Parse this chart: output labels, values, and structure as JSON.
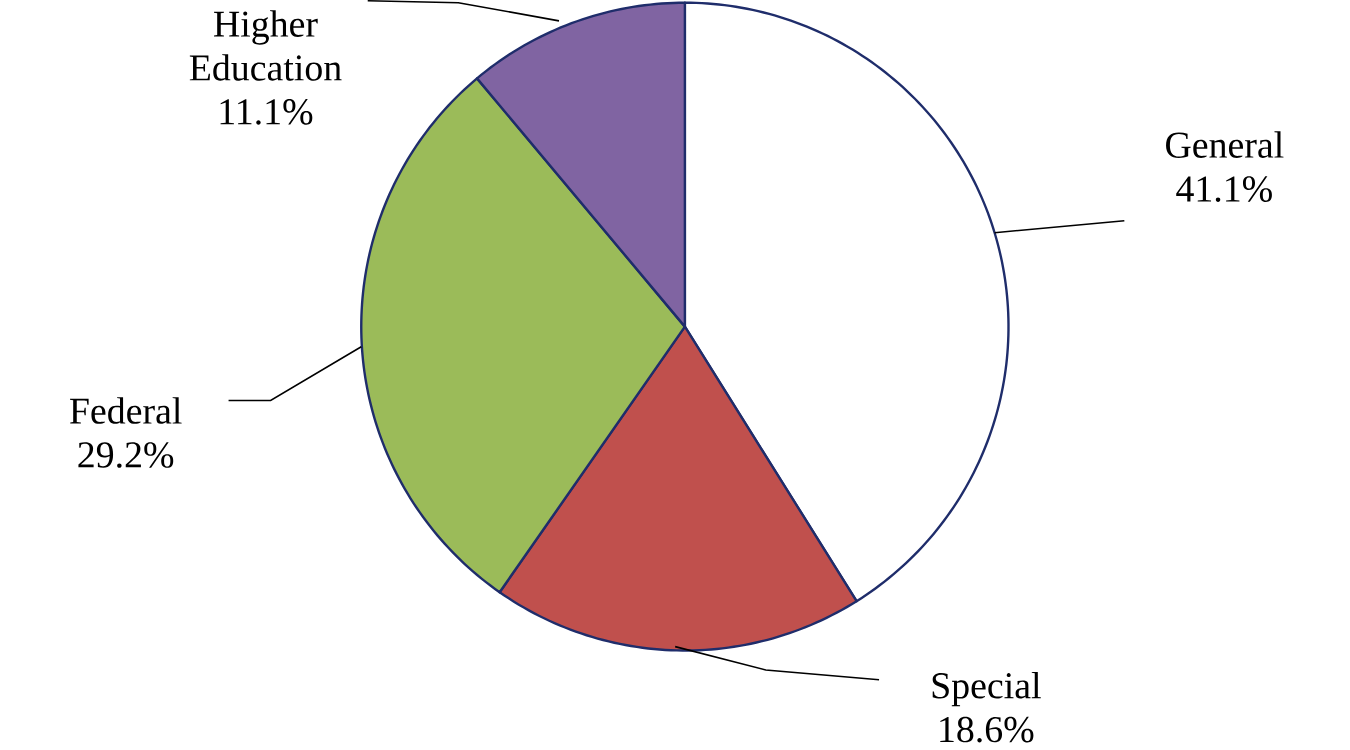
{
  "chart_data": {
    "type": "pie",
    "categories": [
      "General",
      "Special",
      "Federal",
      "Higher Education"
    ],
    "values": [
      41.1,
      18.6,
      29.2,
      11.1
    ],
    "value_labels": [
      "41.1%",
      "18.6%",
      "29.2%",
      "11.1%"
    ],
    "colors": [
      "#ffffff",
      "#c0504d",
      "#9bbb59",
      "#8064a2"
    ]
  }
}
